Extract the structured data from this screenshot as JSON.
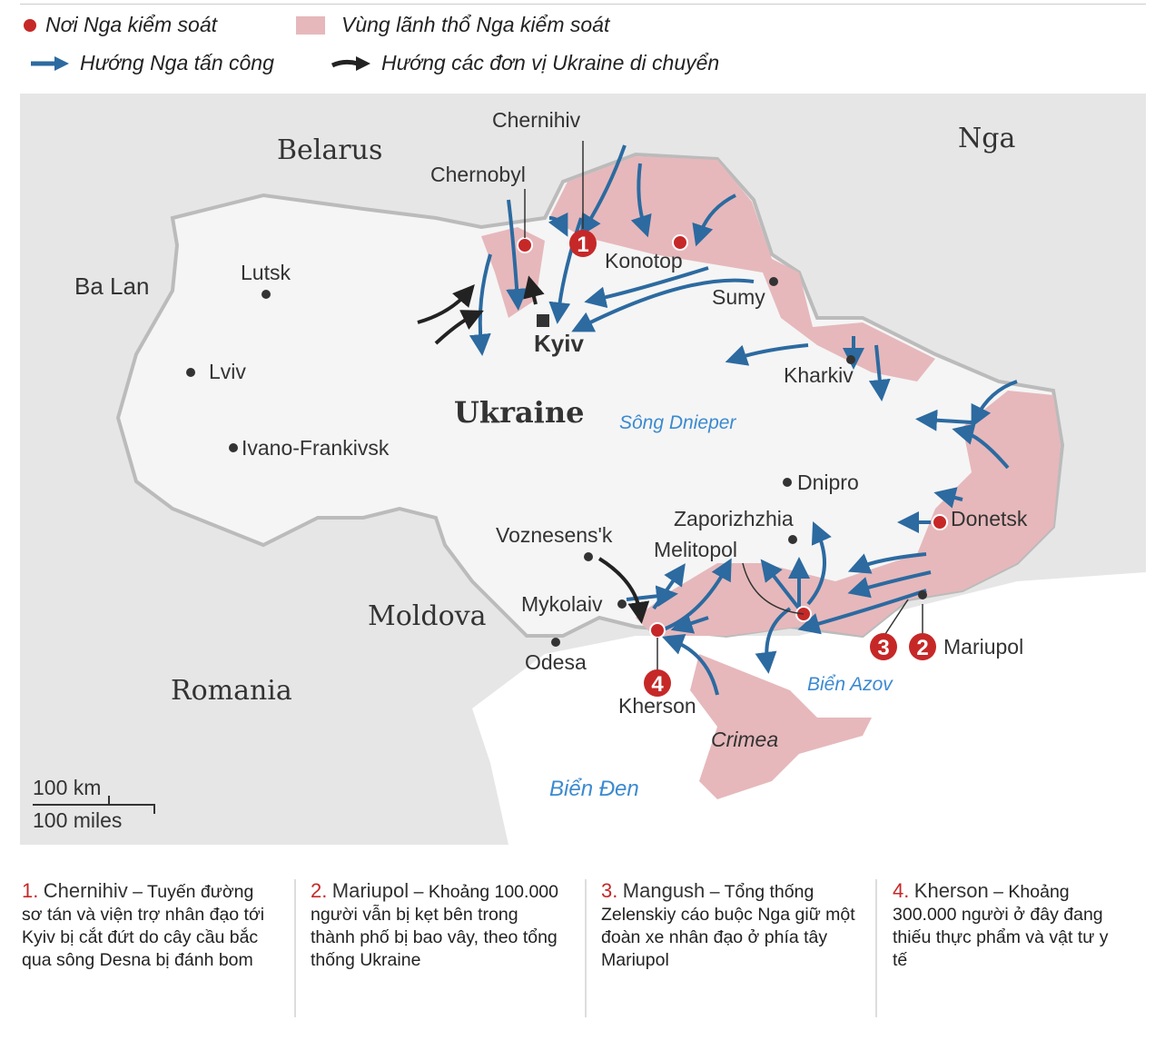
{
  "legend": {
    "controlled_point": "Nơi Nga kiểm soát",
    "controlled_area": "Vùng lãnh thổ Nga kiểm soát",
    "russian_attack": "Hướng Nga tấn công",
    "ukraine_moves": "Hướng các đơn vị Ukraine di chuyển"
  },
  "colors": {
    "russia_area": "#e6b8bb",
    "russia_point": "#c62828",
    "russian_arrow": "#2c6aa0",
    "ukraine_arrow": "#222222",
    "land": "#f3f3f3",
    "neighbour": "#e6e6e6",
    "water_label": "#3b8ad0"
  },
  "map": {
    "countries": {
      "belarus": "Belarus",
      "russia": "Nga",
      "poland": "Ba Lan",
      "ukraine": "Ukraine",
      "moldova": "Moldova",
      "romania": "Romania"
    },
    "cities": {
      "chernihiv": "Chernihiv",
      "chernobyl": "Chernobyl",
      "konotop": "Konotop",
      "sumy": "Sumy",
      "kyiv": "Kyiv",
      "lutsk": "Lutsk",
      "lviv": "Lviv",
      "ivano": "Ivano-Frankivsk",
      "kharkiv": "Kharkiv",
      "dnipro": "Dnipro",
      "zaporizhzhia": "Zaporizhzhia",
      "melitopol": "Melitopol",
      "voznesensk": "Voznesens'k",
      "mykolaiv": "Mykolaiv",
      "odesa": "Odesa",
      "kherson": "Kherson",
      "donetsk": "Donetsk",
      "mariupol": "Mariupol",
      "crimea": "Crimea"
    },
    "water": {
      "dnieper": "Sông Dnieper",
      "azov": "Biển Azov",
      "black_sea": "Biển Đen"
    },
    "markers": [
      "1",
      "2",
      "3",
      "4"
    ],
    "scale": {
      "km": "100 km",
      "miles": "100 miles"
    }
  },
  "notes": [
    {
      "num": "1.",
      "title": "Chernihiv",
      "dash": " – ",
      "text": "Tuyến đường sơ tán và viện trợ nhân đạo tới Kyiv bị cắt đứt do cây cầu bắc qua sông Desna bị đánh bom"
    },
    {
      "num": "2.",
      "title": "Mariupol",
      "dash": " – ",
      "text": "Khoảng 100.000 người vẫn bị kẹt bên trong thành phố bị bao vây, theo tổng thống Ukraine"
    },
    {
      "num": "3.",
      "title": "Mangush",
      "dash": " – ",
      "text": "Tổng thống Zelenskiy cáo buộc Nga giữ một đoàn xe nhân đạo ở phía tây Mariupol"
    },
    {
      "num": "4.",
      "title": "Kherson",
      "dash": " – ",
      "text": "Khoảng 300.000 người ở đây đang thiếu thực phẩm và vật tư y tế"
    }
  ]
}
